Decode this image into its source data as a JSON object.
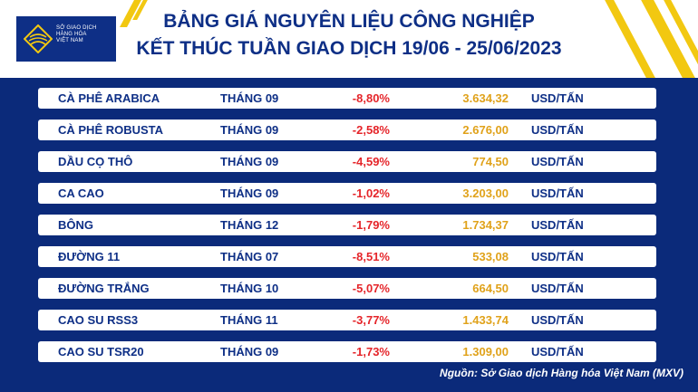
{
  "logo": {
    "lines": [
      "SỞ GIAO DỊCH",
      "HÀNG HÓA",
      "VIỆT NAM"
    ]
  },
  "title": {
    "line1": "BẢNG GIÁ NGUYÊN LIỆU CÔNG NGHIỆP",
    "line2": "KẾT THÚC TUẦN GIAO DỊCH 19/06 - 25/06/2023"
  },
  "colors": {
    "navy": "#0e2f86",
    "background": "#0b2a7a",
    "red": "#e5252a",
    "gold": "#e0a21a",
    "yellow": "#f2c811"
  },
  "rows": [
    {
      "name": "CÀ PHÊ ARABICA",
      "month": "THÁNG 09",
      "change": "-8,80%",
      "price": "3.634,32",
      "unit": "USD/TẤN"
    },
    {
      "name": "CÀ PHÊ ROBUSTA",
      "month": "THÁNG 09",
      "change": "-2,58%",
      "price": "2.676,00",
      "unit": "USD/TẤN"
    },
    {
      "name": "DẦU CỌ THÔ",
      "month": "THÁNG 09",
      "change": "-4,59%",
      "price": "774,50",
      "unit": "USD/TẤN"
    },
    {
      "name": "CA CAO",
      "month": "THÁNG 09",
      "change": "-1,02%",
      "price": "3.203,00",
      "unit": "USD/TẤN"
    },
    {
      "name": "BÔNG",
      "month": "THÁNG 12",
      "change": "-1,79%",
      "price": "1.734,37",
      "unit": "USD/TẤN"
    },
    {
      "name": "ĐƯỜNG 11",
      "month": "THÁNG 07",
      "change": "-8,51%",
      "price": "533,08",
      "unit": "USD/TẤN"
    },
    {
      "name": "ĐƯỜNG TRẮNG",
      "month": "THÁNG 10",
      "change": "-5,07%",
      "price": "664,50",
      "unit": "USD/TẤN"
    },
    {
      "name": "CAO SU RSS3",
      "month": "THÁNG 11",
      "change": "-3,77%",
      "price": "1.433,74",
      "unit": "USD/TẤN"
    },
    {
      "name": "CAO SU TSR20",
      "month": "THÁNG 09",
      "change": "-1,73%",
      "price": "1.309,00",
      "unit": "USD/TẤN"
    }
  ],
  "source": "Nguồn: Sở Giao dịch Hàng hóa Việt Nam (MXV)"
}
